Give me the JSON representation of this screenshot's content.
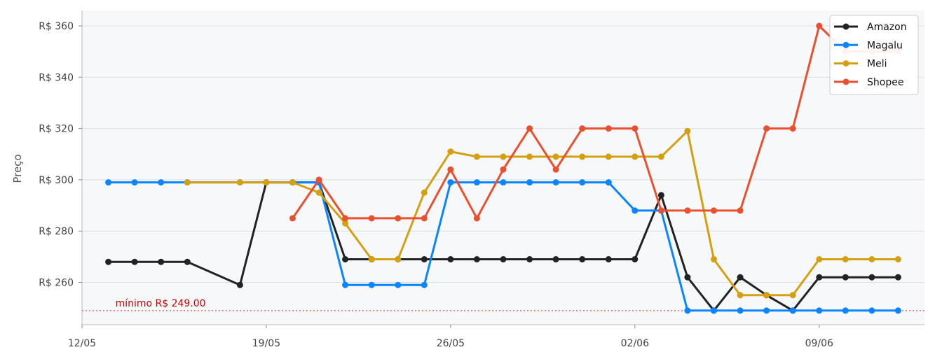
{
  "chart_data": {
    "type": "line",
    "title": "",
    "xlabel": "",
    "ylabel": "Preço",
    "x": [
      "2024-05-13",
      "2024-05-14",
      "2024-05-15",
      "2024-05-16",
      "2024-05-17",
      "2024-05-18",
      "2024-05-19",
      "2024-05-20",
      "2024-05-21",
      "2024-05-22",
      "2024-05-23",
      "2024-05-24",
      "2024-05-25",
      "2024-05-26",
      "2024-05-27",
      "2024-05-28",
      "2024-05-29",
      "2024-05-30",
      "2024-05-31",
      "2024-06-01",
      "2024-06-02",
      "2024-06-03",
      "2024-06-04",
      "2024-06-05",
      "2024-06-06",
      "2024-06-07",
      "2024-06-08",
      "2024-06-09",
      "2024-06-10",
      "2024-06-11",
      "2024-06-12"
    ],
    "x_ticks": [
      {
        "date": "2024-05-12",
        "label": "12/05"
      },
      {
        "date": "2024-05-19",
        "label": "19/05"
      },
      {
        "date": "2024-05-26",
        "label": "26/05"
      },
      {
        "date": "2024-06-02",
        "label": "02/06"
      },
      {
        "date": "2024-06-09",
        "label": "09/06"
      }
    ],
    "xlim": [
      "2024-05-12",
      "2024-06-13"
    ],
    "y_ticks": [
      {
        "value": 260,
        "label": "R$ 260"
      },
      {
        "value": 280,
        "label": "R$ 280"
      },
      {
        "value": 300,
        "label": "R$ 300"
      },
      {
        "value": 320,
        "label": "R$ 320"
      },
      {
        "value": 340,
        "label": "R$ 340"
      },
      {
        "value": 360,
        "label": "R$ 360"
      }
    ],
    "ylim": [
      243.5,
      366
    ],
    "grid": "horizontal",
    "legend_position": "top-right",
    "series": [
      {
        "name": "Amazon",
        "color": "#222222",
        "values": [
          268,
          268,
          268,
          268,
          null,
          259,
          299,
          299,
          299,
          269,
          269,
          269,
          269,
          269,
          269,
          269,
          269,
          269,
          269,
          269,
          269,
          294,
          262,
          249,
          262,
          255,
          249,
          262,
          262,
          262,
          262
        ]
      },
      {
        "name": "Magalu",
        "color": "#0a84ff",
        "values": [
          299,
          299,
          299,
          299,
          null,
          299,
          299,
          299,
          299,
          259,
          259,
          259,
          259,
          299,
          299,
          299,
          299,
          299,
          299,
          299,
          288,
          288,
          249,
          249,
          249,
          249,
          249,
          249,
          249,
          249,
          249
        ]
      },
      {
        "name": "Meli",
        "color": "#d4a012",
        "values": [
          null,
          null,
          null,
          299,
          null,
          299,
          299,
          299,
          295,
          283,
          269,
          269,
          295,
          311,
          309,
          309,
          309,
          309,
          309,
          309,
          309,
          309,
          319,
          269,
          255,
          255,
          255,
          269,
          269,
          269,
          269
        ]
      },
      {
        "name": "Shopee",
        "color": "#e8502f",
        "values": [
          null,
          null,
          null,
          null,
          null,
          null,
          null,
          285,
          300,
          285,
          285,
          285,
          285,
          304,
          285,
          304,
          320,
          304,
          320,
          320,
          320,
          288,
          288,
          288,
          288,
          320,
          320,
          360,
          350,
          350,
          350
        ]
      }
    ],
    "annotations": [
      {
        "type": "hline",
        "value": 249,
        "color": "#d9534f",
        "style": "dotted",
        "label": "mínimo R$ 249.00"
      }
    ]
  }
}
